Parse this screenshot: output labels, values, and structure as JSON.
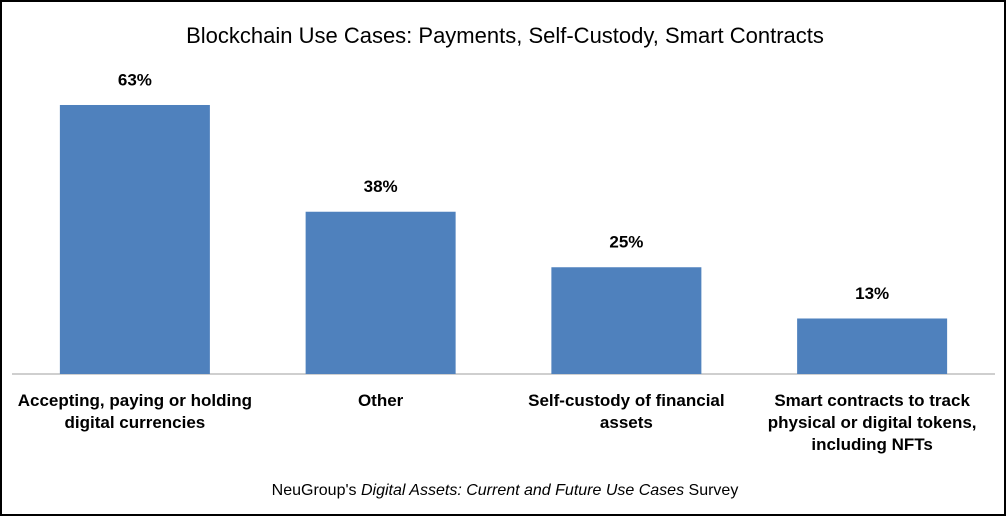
{
  "chart_data": {
    "type": "bar",
    "title": "Blockchain Use Cases: Payments, Self-Custody, Smart Contracts",
    "categories": [
      "Accepting, paying or holding digital currencies",
      "Other",
      "Self-custody of financial assets",
      "Smart contracts to track physical or digital tokens, including NFTs"
    ],
    "values": [
      63,
      38,
      25,
      13
    ],
    "value_labels": [
      "63%",
      "38%",
      "25%",
      "13%"
    ],
    "color": "#4f81bd",
    "caption": {
      "prefix": "NeuGroup's",
      "italic": "Digital Assets: Current and Future Use Cases",
      "suffix": "Survey"
    }
  }
}
